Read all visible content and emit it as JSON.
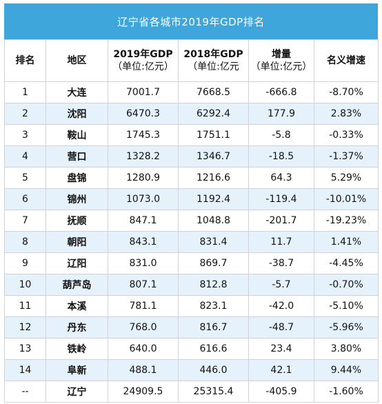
{
  "title": "辽宁省各城市2019年GDP排名",
  "headers": [
    {
      "main": "排名",
      "sub": ""
    },
    {
      "main": "地区",
      "sub": ""
    },
    {
      "main": "2019年GDP",
      "sub": "（单位:亿元）"
    },
    {
      "main": "2018年GDP",
      "sub": "（单位:亿元"
    },
    {
      "main": "增量",
      "sub": "（单位:亿元）"
    },
    {
      "main": "名义增速",
      "sub": ""
    }
  ],
  "rows": [
    [
      "1",
      "大连",
      "7001.7",
      "7668.5",
      "-666.8",
      "-8.70%"
    ],
    [
      "2",
      "沈阳",
      "6470.3",
      "6292.4",
      "177.9",
      "2.83%"
    ],
    [
      "3",
      "鞍山",
      "1745.3",
      "1751.1",
      "-5.8",
      "-0.33%"
    ],
    [
      "4",
      "营口",
      "1328.2",
      "1346.7",
      "-18.5",
      "-1.37%"
    ],
    [
      "5",
      "盘锦",
      "1280.9",
      "1216.6",
      "64.3",
      "5.29%"
    ],
    [
      "6",
      "锦州",
      "1073.0",
      "1192.4",
      "-119.4",
      "-10.01%"
    ],
    [
      "7",
      "抚顺",
      "847.1",
      "1048.8",
      "-201.7",
      "-19.23%"
    ],
    [
      "8",
      "朝阳",
      "843.1",
      "831.4",
      "11.7",
      "1.41%"
    ],
    [
      "9",
      "辽阳",
      "831.0",
      "869.7",
      "-38.7",
      "-4.45%"
    ],
    [
      "10",
      "葫芦岛",
      "807.1",
      "812.8",
      "-5.7",
      "-0.70%"
    ],
    [
      "11",
      "本溪",
      "781.1",
      "823.1",
      "-42.0",
      "-5.10%"
    ],
    [
      "12",
      "丹东",
      "768.0",
      "816.7",
      "-48.7",
      "-5.96%"
    ],
    [
      "13",
      "铁岭",
      "640.0",
      "616.6",
      "23.4",
      "3.80%"
    ],
    [
      "14",
      "阜新",
      "488.1",
      "446.0",
      "42.1",
      "9.44%"
    ],
    [
      "--",
      "辽宁",
      "24909.5",
      "25315.4",
      "-405.9",
      "-1.60%"
    ]
  ],
  "colors": {
    "title_background": "#3ea6da",
    "stripe_row": "#e6f2fb",
    "border": "#cfd3d8"
  }
}
